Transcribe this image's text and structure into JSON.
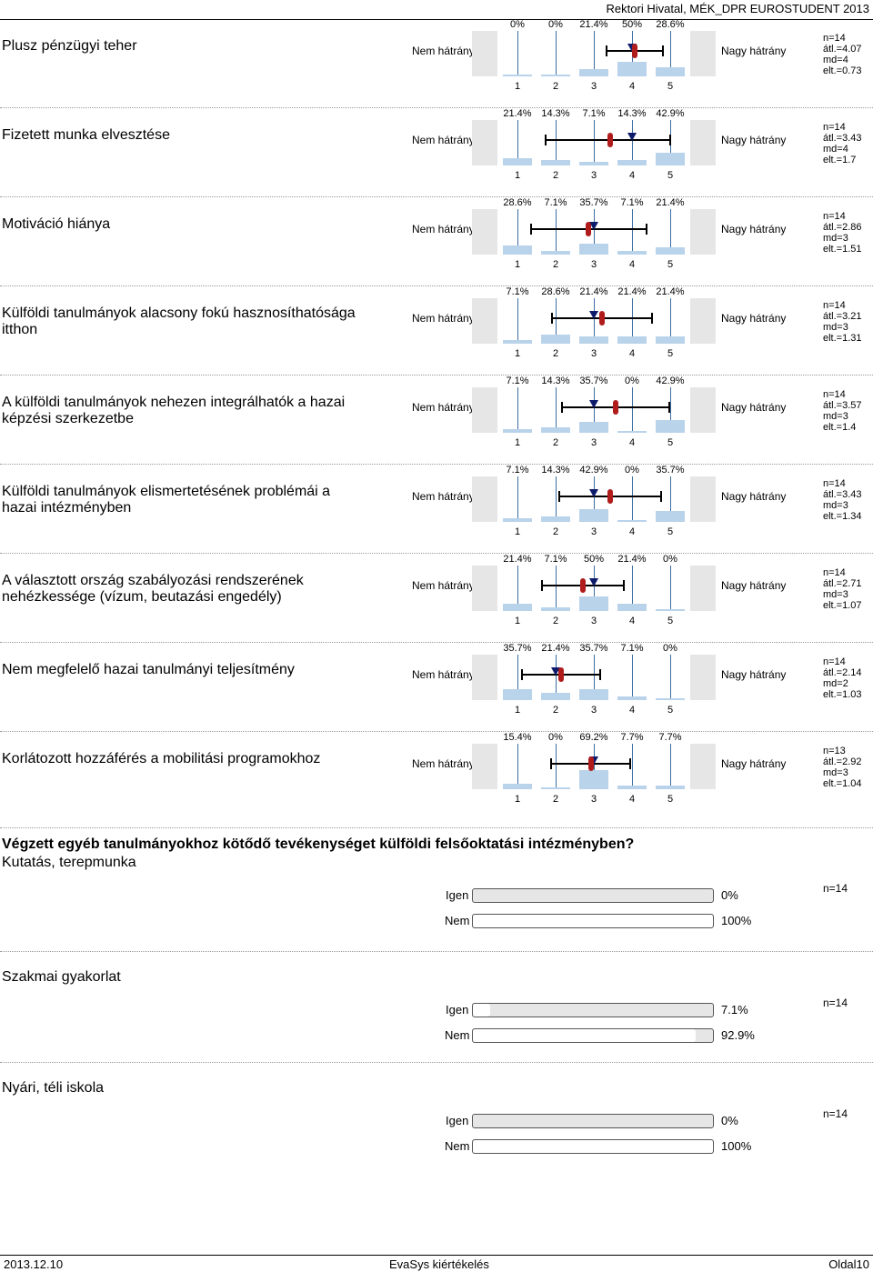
{
  "header": {
    "title": "Rektori Hivatal, MÉK_DPR EUROSTUDENT 2013"
  },
  "labels": {
    "left": "Nem hátrány",
    "right": "Nagy hátrány",
    "categories": [
      "1",
      "2",
      "3",
      "4",
      "5"
    ]
  },
  "questions": [
    {
      "text": "Plusz pénzügyi teher",
      "pcts": [
        "0%",
        "0%",
        "21.4%",
        "50%",
        "28.6%"
      ],
      "dist": [
        0,
        0,
        21.4,
        50,
        28.6
      ],
      "mean": 4.07,
      "median": 4,
      "sd": 0.73,
      "stats": [
        "n=14",
        "átl.=4.07",
        "md=4",
        "elt.=0.73"
      ]
    },
    {
      "text": "Fizetett munka elvesztése",
      "pcts": [
        "21.4%",
        "14.3%",
        "7.1%",
        "14.3%",
        "42.9%"
      ],
      "dist": [
        21.4,
        14.3,
        7.1,
        14.3,
        42.9
      ],
      "mean": 3.43,
      "median": 4,
      "sd": 1.7,
      "stats": [
        "n=14",
        "átl.=3.43",
        "md=4",
        "elt.=1.7"
      ]
    },
    {
      "text": "Motiváció hiánya",
      "pcts": [
        "28.6%",
        "7.1%",
        "35.7%",
        "7.1%",
        "21.4%"
      ],
      "dist": [
        28.6,
        7.1,
        35.7,
        7.1,
        21.4
      ],
      "mean": 2.86,
      "median": 3,
      "sd": 1.51,
      "stats": [
        "n=14",
        "átl.=2.86",
        "md=3",
        "elt.=1.51"
      ]
    },
    {
      "text": "Külföldi tanulmányok alacsony fokú hasznosíthatósága itthon",
      "pcts": [
        "7.1%",
        "28.6%",
        "21.4%",
        "21.4%",
        "21.4%"
      ],
      "dist": [
        7.1,
        28.6,
        21.4,
        21.4,
        21.4
      ],
      "mean": 3.21,
      "median": 3,
      "sd": 1.31,
      "stats": [
        "n=14",
        "átl.=3.21",
        "md=3",
        "elt.=1.31"
      ]
    },
    {
      "text": "A külföldi tanulmányok nehezen integrálhatók a hazai képzési szerkezetbe",
      "pcts": [
        "7.1%",
        "14.3%",
        "35.7%",
        "0%",
        "42.9%"
      ],
      "dist": [
        7.1,
        14.3,
        35.7,
        0,
        42.9
      ],
      "mean": 3.57,
      "median": 3,
      "sd": 1.4,
      "stats": [
        "n=14",
        "átl.=3.57",
        "md=3",
        "elt.=1.4"
      ]
    },
    {
      "text": "Külföldi tanulmányok elismertetésének problémái a hazai intézményben",
      "pcts": [
        "7.1%",
        "14.3%",
        "42.9%",
        "0%",
        "35.7%"
      ],
      "dist": [
        7.1,
        14.3,
        42.9,
        0,
        35.7
      ],
      "mean": 3.43,
      "median": 3,
      "sd": 1.34,
      "stats": [
        "n=14",
        "átl.=3.43",
        "md=3",
        "elt.=1.34"
      ]
    },
    {
      "text": "A választott ország szabályozási rendszerének nehézkessége (vízum, beutazási engedély)",
      "pcts": [
        "21.4%",
        "7.1%",
        "50%",
        "21.4%",
        "0%"
      ],
      "dist": [
        21.4,
        7.1,
        50,
        21.4,
        0
      ],
      "mean": 2.71,
      "median": 3,
      "sd": 1.07,
      "stats": [
        "n=14",
        "átl.=2.71",
        "md=3",
        "elt.=1.07"
      ]
    },
    {
      "text": "Nem megfelelő hazai tanulmányi teljesítmény",
      "pcts": [
        "35.7%",
        "21.4%",
        "35.7%",
        "7.1%",
        "0%"
      ],
      "dist": [
        35.7,
        21.4,
        35.7,
        7.1,
        0
      ],
      "mean": 2.14,
      "median": 2,
      "sd": 1.03,
      "stats": [
        "n=14",
        "átl.=2.14",
        "md=2",
        "elt.=1.03"
      ]
    },
    {
      "text": "Korlátozott hozzáférés a mobilitási programokhoz",
      "pcts": [
        "15.4%",
        "0%",
        "69.2%",
        "7.7%",
        "7.7%"
      ],
      "dist": [
        15.4,
        0,
        69.2,
        7.7,
        7.7
      ],
      "mean": 2.92,
      "median": 3,
      "sd": 1.04,
      "stats": [
        "n=13",
        "átl.=2.92",
        "md=3",
        "elt.=1.04"
      ]
    }
  ],
  "section_title": "Végzett egyéb tanulmányokhoz kötődő tevékenységet külföldi felsőoktatási intézményben?",
  "yesno": [
    {
      "title": "Kutatás, terepmunka",
      "n": "n=14",
      "yes_label": "Igen",
      "no_label": "Nem",
      "yes_pct": "0%",
      "no_pct": "100%",
      "yes_value": 0,
      "no_value": 100
    },
    {
      "title": "Szakmai gyakorlat",
      "n": "n=14",
      "yes_label": "Igen",
      "no_label": "Nem",
      "yes_pct": "7.1%",
      "no_pct": "92.9%",
      "yes_value": 7.1,
      "no_value": 92.9
    },
    {
      "title": "Nyári, téli iskola",
      "n": "n=14",
      "yes_label": "Igen",
      "no_label": "Nem",
      "yes_pct": "0%",
      "no_pct": "100%",
      "yes_value": 0,
      "no_value": 100
    }
  ],
  "footer": {
    "date": "2013.12.10",
    "center": "EvaSys kiértékelés",
    "page": "Oldal10"
  }
}
